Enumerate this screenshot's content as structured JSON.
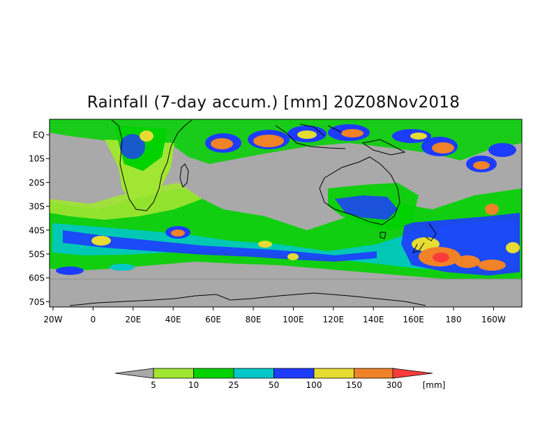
{
  "title": "Rainfall (7-day accum.) [mm] 20Z08Nov2018",
  "colors": {
    "background": "#a9a9a9",
    "frame": "#000000",
    "legend": [
      "#a0e632",
      "#00d200",
      "#00c8c8",
      "#1e3cff",
      "#e6dc32",
      "#f08228",
      "#fa3c3c"
    ]
  },
  "axes": {
    "x_ticks": [
      "20W",
      "0",
      "20E",
      "40E",
      "60E",
      "80E",
      "100E",
      "120E",
      "140E",
      "160E",
      "180",
      "160W"
    ],
    "y_ticks": [
      "EQ",
      "10S",
      "20S",
      "30S",
      "40S",
      "50S",
      "60S",
      "70S"
    ]
  },
  "colorbar": {
    "labels": [
      "5",
      "10",
      "25",
      "50",
      "100",
      "150",
      "300"
    ],
    "unit": "[mm]"
  }
}
